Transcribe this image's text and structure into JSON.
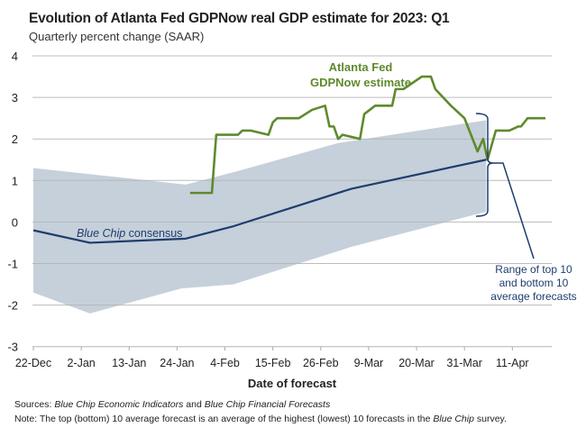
{
  "chart_data": {
    "type": "line",
    "title": "Evolution of Atlanta Fed GDPNow real GDP estimate for 2023: Q1",
    "subtitle": "Quarterly percent change (SAAR)",
    "xlabel": "Date of forecast",
    "ylabel": "",
    "x_units": "days since 22-Dec",
    "xlim": [
      0,
      119
    ],
    "ylim": [
      -3,
      4
    ],
    "yticks": [
      4,
      3,
      2,
      1,
      0,
      -1,
      -2,
      -3
    ],
    "xticks": [
      {
        "day": 0,
        "label": "22-Dec"
      },
      {
        "day": 11,
        "label": "2-Jan"
      },
      {
        "day": 22,
        "label": "13-Jan"
      },
      {
        "day": 33,
        "label": "24-Jan"
      },
      {
        "day": 44,
        "label": "4-Feb"
      },
      {
        "day": 55,
        "label": "15-Feb"
      },
      {
        "day": 66,
        "label": "26-Feb"
      },
      {
        "day": 77,
        "label": "9-Mar"
      },
      {
        "day": 88,
        "label": "20-Mar"
      },
      {
        "day": 99,
        "label": "31-Mar"
      },
      {
        "day": 110,
        "label": "11-Apr"
      }
    ],
    "grid": true,
    "series": [
      {
        "name": "Atlanta Fed GDPNow estimate",
        "label": [
          "Atlanta Fed",
          "GDPNow estimate"
        ],
        "color": "#5f8a2e",
        "points": [
          [
            36,
            0.7
          ],
          [
            41,
            0.7
          ],
          [
            42,
            2.1
          ],
          [
            47,
            2.1
          ],
          [
            48,
            2.2
          ],
          [
            50,
            2.2
          ],
          [
            54,
            2.1
          ],
          [
            55,
            2.4
          ],
          [
            56,
            2.5
          ],
          [
            61,
            2.5
          ],
          [
            64,
            2.7
          ],
          [
            67,
            2.8
          ],
          [
            68,
            2.3
          ],
          [
            69,
            2.3
          ],
          [
            70,
            2.0
          ],
          [
            71,
            2.1
          ],
          [
            75,
            2.0
          ],
          [
            76,
            2.6
          ],
          [
            78.5,
            2.8
          ],
          [
            82.4,
            2.8
          ],
          [
            83.2,
            3.2
          ],
          [
            85,
            3.2
          ],
          [
            89.2,
            3.5
          ],
          [
            91.3,
            3.5
          ],
          [
            92.3,
            3.2
          ],
          [
            95.9,
            2.8
          ],
          [
            99,
            2.5
          ],
          [
            102,
            1.7
          ],
          [
            103.3,
            2.0
          ],
          [
            104.3,
            1.5
          ],
          [
            106.2,
            2.2
          ],
          [
            109.3,
            2.2
          ],
          [
            111.4,
            2.3
          ],
          [
            112,
            2.3
          ],
          [
            113.5,
            2.5
          ],
          [
            117.6,
            2.5
          ]
        ]
      },
      {
        "name": "Blue Chip consensus",
        "color": "#1f3d6e",
        "points": [
          [
            0,
            -0.2
          ],
          [
            13,
            -0.5
          ],
          [
            35,
            -0.4
          ],
          [
            46,
            -0.1
          ],
          [
            58,
            0.3
          ],
          [
            73,
            0.8
          ],
          [
            104,
            1.5
          ]
        ]
      }
    ],
    "band": {
      "name": "Range of top 10 and bottom 10 average forecasts",
      "label": [
        "Range of top 10",
        "and bottom 10",
        "average forecasts"
      ],
      "color": "#c5d0da",
      "upper": [
        [
          0,
          1.3
        ],
        [
          35,
          0.9
        ],
        [
          46,
          1.2
        ],
        [
          70,
          1.9
        ],
        [
          104,
          2.45
        ]
      ],
      "lower": [
        [
          0,
          -1.7
        ],
        [
          13,
          -2.2
        ],
        [
          34,
          -1.6
        ],
        [
          46,
          -1.5
        ],
        [
          73,
          -0.6
        ],
        [
          104,
          0.25
        ]
      ]
    },
    "consensus_label": [
      "Blue Chip",
      " consensus"
    ]
  },
  "footer": {
    "sources_label": "Sources:",
    "sources_a": "Blue Chip Economic Indicators",
    "sources_and": " and ",
    "sources_b": "Blue Chip Financial Forecasts",
    "note_label": "Note",
    "note_a": ": The top (bottom) 10 average forecast is an average of the highest (lowest) 10 forecasts in the ",
    "note_b": "Blue Chip",
    "note_c": " survey."
  }
}
